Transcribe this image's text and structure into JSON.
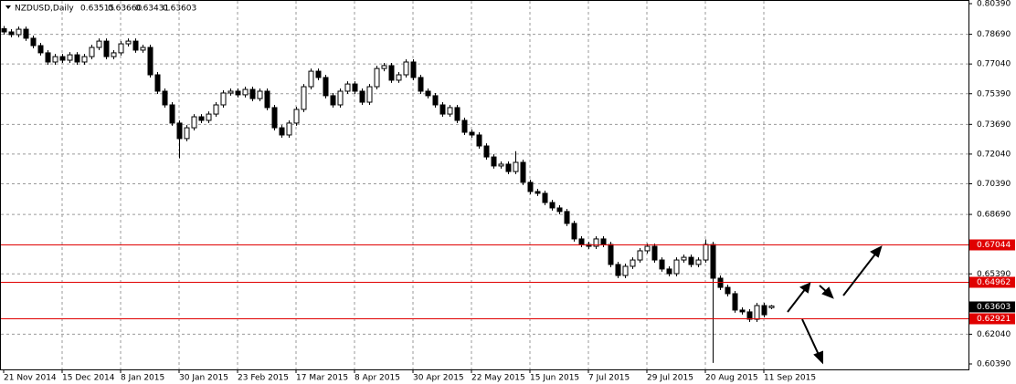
{
  "chart_data": {
    "type": "candlestick",
    "symbol": "NZDUSD,Daily",
    "header_values": [
      "0.63515",
      "0.63660",
      "0.63431",
      "0.63603"
    ],
    "ylim": [
      0.6039,
      0.8039
    ],
    "yticks": [
      {
        "value": 0.8039,
        "label": "0.80390"
      },
      {
        "value": 0.7869,
        "label": "0.78690"
      },
      {
        "value": 0.7704,
        "label": "0.77040"
      },
      {
        "value": 0.7539,
        "label": "0.75390"
      },
      {
        "value": 0.7369,
        "label": "0.73690"
      },
      {
        "value": 0.7204,
        "label": "0.72040"
      },
      {
        "value": 0.7039,
        "label": "0.70390"
      },
      {
        "value": 0.6869,
        "label": "0.68690"
      },
      {
        "value": 0.6539,
        "label": "0.65390"
      },
      {
        "value": 0.6204,
        "label": "0.62040"
      },
      {
        "value": 0.6039,
        "label": "0.60390"
      }
    ],
    "xlim": [
      0,
      132
    ],
    "xticks": [
      {
        "value": 0,
        "label": "21 Nov 2014"
      },
      {
        "value": 8,
        "label": "15 Dec 2014"
      },
      {
        "value": 16,
        "label": "8 Jan 2015"
      },
      {
        "value": 24,
        "label": "30 Jan 2015"
      },
      {
        "value": 32,
        "label": "23 Feb 2015"
      },
      {
        "value": 40,
        "label": "17 Mar 2015"
      },
      {
        "value": 48,
        "label": "8 Apr 2015"
      },
      {
        "value": 56,
        "label": "30 Apr 2015"
      },
      {
        "value": 64,
        "label": "22 May 2015"
      },
      {
        "value": 72,
        "label": "15 Jun 2015"
      },
      {
        "value": 80,
        "label": "7 Jul 2015"
      },
      {
        "value": 88,
        "label": "29 Jul 2015"
      },
      {
        "value": 96,
        "label": "20 Aug 2015"
      },
      {
        "value": 104,
        "label": "11 Sep 2015"
      }
    ],
    "grid": true,
    "levels": [
      {
        "value": 0.67044,
        "label": "0.67044"
      },
      {
        "value": 0.64962,
        "label": "0.64962"
      },
      {
        "value": 0.62921,
        "label": "0.62921"
      }
    ],
    "level_color": "#e00000",
    "current_price": {
      "value": 0.63603,
      "label": "0.63603"
    },
    "up_color": "#ffffff",
    "down_color": "#000000",
    "ohlc": [
      [
        0.79,
        0.7915,
        0.7867,
        0.7882
      ],
      [
        0.7882,
        0.7897,
        0.7852,
        0.7867
      ],
      [
        0.7867,
        0.7912,
        0.7852,
        0.7897
      ],
      [
        0.7897,
        0.7912,
        0.7832,
        0.7847
      ],
      [
        0.7847,
        0.7862,
        0.7791,
        0.7806
      ],
      [
        0.7806,
        0.7821,
        0.7751,
        0.7766
      ],
      [
        0.7766,
        0.7781,
        0.77,
        0.7715
      ],
      [
        0.7715,
        0.776,
        0.77,
        0.7745
      ],
      [
        0.7745,
        0.776,
        0.771,
        0.7725
      ],
      [
        0.7725,
        0.777,
        0.771,
        0.7755
      ],
      [
        0.7755,
        0.777,
        0.77,
        0.7715
      ],
      [
        0.7715,
        0.776,
        0.77,
        0.7745
      ],
      [
        0.7745,
        0.7811,
        0.773,
        0.7796
      ],
      [
        0.7796,
        0.7846,
        0.7781,
        0.7831
      ],
      [
        0.7831,
        0.7846,
        0.773,
        0.7745
      ],
      [
        0.7745,
        0.7781,
        0.773,
        0.7766
      ],
      [
        0.7766,
        0.7831,
        0.7751,
        0.7816
      ],
      [
        0.7816,
        0.7846,
        0.7801,
        0.7831
      ],
      [
        0.7831,
        0.7846,
        0.7766,
        0.7781
      ],
      [
        0.7781,
        0.7811,
        0.7766,
        0.7796
      ],
      [
        0.7796,
        0.7811,
        0.7629,
        0.7644
      ],
      [
        0.7644,
        0.7659,
        0.7538,
        0.7553
      ],
      [
        0.7553,
        0.7568,
        0.7462,
        0.7477
      ],
      [
        0.7477,
        0.7492,
        0.7361,
        0.7376
      ],
      [
        0.7376,
        0.7391,
        0.718,
        0.729
      ],
      [
        0.729,
        0.7365,
        0.7275,
        0.735
      ],
      [
        0.735,
        0.7426,
        0.7335,
        0.7411
      ],
      [
        0.7411,
        0.7426,
        0.7376,
        0.7391
      ],
      [
        0.7391,
        0.7441,
        0.7376,
        0.7426
      ],
      [
        0.7426,
        0.7492,
        0.7411,
        0.7477
      ],
      [
        0.7477,
        0.7558,
        0.7462,
        0.7543
      ],
      [
        0.7543,
        0.7568,
        0.7528,
        0.7553
      ],
      [
        0.7553,
        0.7568,
        0.7518,
        0.7533
      ],
      [
        0.7533,
        0.7578,
        0.7518,
        0.7563
      ],
      [
        0.7563,
        0.7578,
        0.7497,
        0.7512
      ],
      [
        0.7512,
        0.7568,
        0.7497,
        0.7553
      ],
      [
        0.7553,
        0.7568,
        0.7447,
        0.7462
      ],
      [
        0.7462,
        0.7477,
        0.7335,
        0.735
      ],
      [
        0.735,
        0.7365,
        0.7295,
        0.731
      ],
      [
        0.731,
        0.7391,
        0.7295,
        0.7376
      ],
      [
        0.7376,
        0.7467,
        0.7361,
        0.7452
      ],
      [
        0.7452,
        0.7593,
        0.7437,
        0.7578
      ],
      [
        0.7578,
        0.7679,
        0.7563,
        0.7664
      ],
      [
        0.7664,
        0.7679,
        0.7614,
        0.7629
      ],
      [
        0.7629,
        0.7644,
        0.7513,
        0.7528
      ],
      [
        0.7528,
        0.7543,
        0.7462,
        0.7477
      ],
      [
        0.7477,
        0.7568,
        0.7462,
        0.7553
      ],
      [
        0.7553,
        0.7608,
        0.7538,
        0.7593
      ],
      [
        0.7593,
        0.7608,
        0.7538,
        0.7553
      ],
      [
        0.7553,
        0.7568,
        0.7477,
        0.7492
      ],
      [
        0.7492,
        0.7593,
        0.7477,
        0.7578
      ],
      [
        0.7578,
        0.7694,
        0.7563,
        0.7679
      ],
      [
        0.7679,
        0.771,
        0.7664,
        0.7695
      ],
      [
        0.7695,
        0.771,
        0.7599,
        0.7614
      ],
      [
        0.7614,
        0.7659,
        0.7599,
        0.7644
      ],
      [
        0.7644,
        0.773,
        0.7629,
        0.7715
      ],
      [
        0.7715,
        0.773,
        0.7614,
        0.7629
      ],
      [
        0.7629,
        0.7644,
        0.7538,
        0.7553
      ],
      [
        0.7553,
        0.7568,
        0.7513,
        0.7528
      ],
      [
        0.7528,
        0.7543,
        0.7462,
        0.7477
      ],
      [
        0.7477,
        0.7492,
        0.7411,
        0.7426
      ],
      [
        0.7426,
        0.7477,
        0.7411,
        0.7462
      ],
      [
        0.7462,
        0.7477,
        0.7376,
        0.7391
      ],
      [
        0.7391,
        0.7406,
        0.731,
        0.7325
      ],
      [
        0.7325,
        0.734,
        0.7295,
        0.731
      ],
      [
        0.731,
        0.7325,
        0.7234,
        0.7249
      ],
      [
        0.7249,
        0.7264,
        0.7173,
        0.7188
      ],
      [
        0.7188,
        0.7203,
        0.7123,
        0.7138
      ],
      [
        0.7138,
        0.7163,
        0.7123,
        0.7148
      ],
      [
        0.7148,
        0.7163,
        0.7092,
        0.7107
      ],
      [
        0.7107,
        0.722,
        0.7092,
        0.7158
      ],
      [
        0.7158,
        0.7173,
        0.7032,
        0.7047
      ],
      [
        0.7047,
        0.7062,
        0.6981,
        0.6996
      ],
      [
        0.6996,
        0.7011,
        0.6971,
        0.6986
      ],
      [
        0.6986,
        0.7001,
        0.692,
        0.6935
      ],
      [
        0.6935,
        0.695,
        0.689,
        0.6905
      ],
      [
        0.6905,
        0.692,
        0.687,
        0.6885
      ],
      [
        0.6885,
        0.69,
        0.6804,
        0.6819
      ],
      [
        0.6819,
        0.6834,
        0.6718,
        0.6733
      ],
      [
        0.6733,
        0.6748,
        0.6687,
        0.6702
      ],
      [
        0.6702,
        0.6717,
        0.6677,
        0.6692
      ],
      [
        0.6692,
        0.6748,
        0.6677,
        0.6733
      ],
      [
        0.6733,
        0.6748,
        0.6687,
        0.6702
      ],
      [
        0.6702,
        0.6717,
        0.6576,
        0.6591
      ],
      [
        0.6591,
        0.6606,
        0.6515,
        0.653
      ],
      [
        0.653,
        0.6596,
        0.6515,
        0.6581
      ],
      [
        0.6581,
        0.6631,
        0.6566,
        0.6616
      ],
      [
        0.6616,
        0.6682,
        0.6601,
        0.6667
      ],
      [
        0.6667,
        0.6707,
        0.6652,
        0.6692
      ],
      [
        0.6692,
        0.6707,
        0.6601,
        0.6616
      ],
      [
        0.6616,
        0.6631,
        0.6551,
        0.6566
      ],
      [
        0.6566,
        0.6581,
        0.6525,
        0.654
      ],
      [
        0.654,
        0.6631,
        0.6525,
        0.6616
      ],
      [
        0.6616,
        0.6646,
        0.6601,
        0.6631
      ],
      [
        0.6631,
        0.6646,
        0.6576,
        0.6591
      ],
      [
        0.6591,
        0.6631,
        0.6576,
        0.6616
      ],
      [
        0.6616,
        0.673,
        0.6601,
        0.6702
      ],
      [
        0.6702,
        0.6717,
        0.6045,
        0.6515
      ],
      [
        0.6515,
        0.653,
        0.6449,
        0.6464
      ],
      [
        0.6464,
        0.6479,
        0.6414,
        0.6429
      ],
      [
        0.6429,
        0.6444,
        0.6323,
        0.6338
      ],
      [
        0.6338,
        0.6353,
        0.6313,
        0.6328
      ],
      [
        0.6328,
        0.6343,
        0.6272,
        0.6287
      ],
      [
        0.6287,
        0.6378,
        0.6272,
        0.6363
      ],
      [
        0.6363,
        0.6378,
        0.6297,
        0.6312
      ],
      [
        0.63515,
        0.6366,
        0.63431,
        0.63603
      ]
    ]
  }
}
